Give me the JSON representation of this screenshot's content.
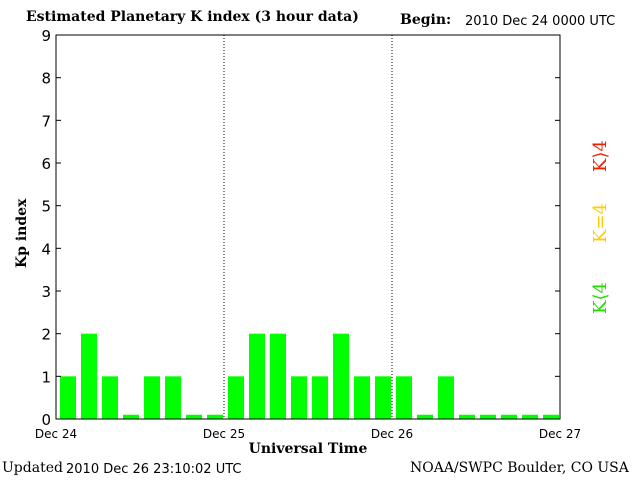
{
  "header": {
    "title": "Estimated Planetary K index (3 hour data)",
    "begin_label": "Begin:",
    "begin_value": "2010 Dec 24 0000 UTC"
  },
  "footer": {
    "updated_label": "Updated",
    "updated_value": "2010 Dec 26 23:10:02 UTC",
    "credit": "NOAA/SWPC Boulder, CO USA"
  },
  "legend": {
    "high": "K⟩4",
    "equal": "K=4",
    "low": "K⟨4"
  },
  "colors": {
    "bar": "#00ff00",
    "low": "#22dd00",
    "equal": "#ffcc00",
    "high": "#ee2200"
  },
  "chart_data": {
    "type": "bar",
    "ylabel": "Kp index",
    "xlabel": "Universal Time",
    "ylim": [
      0,
      9
    ],
    "yticks": [
      "0",
      "1",
      "2",
      "3",
      "4",
      "5",
      "6",
      "7",
      "8",
      "9"
    ],
    "day_labels": [
      "Dec 24",
      "Dec 25",
      "Dec 26",
      "Dec 27"
    ],
    "values": [
      1,
      2,
      1,
      0.1,
      1,
      1,
      0.1,
      0.1,
      1,
      2,
      2,
      1,
      1,
      2,
      1,
      1,
      1,
      0.1,
      1,
      0.1,
      0.1,
      0.1,
      0.1,
      0.1
    ]
  }
}
